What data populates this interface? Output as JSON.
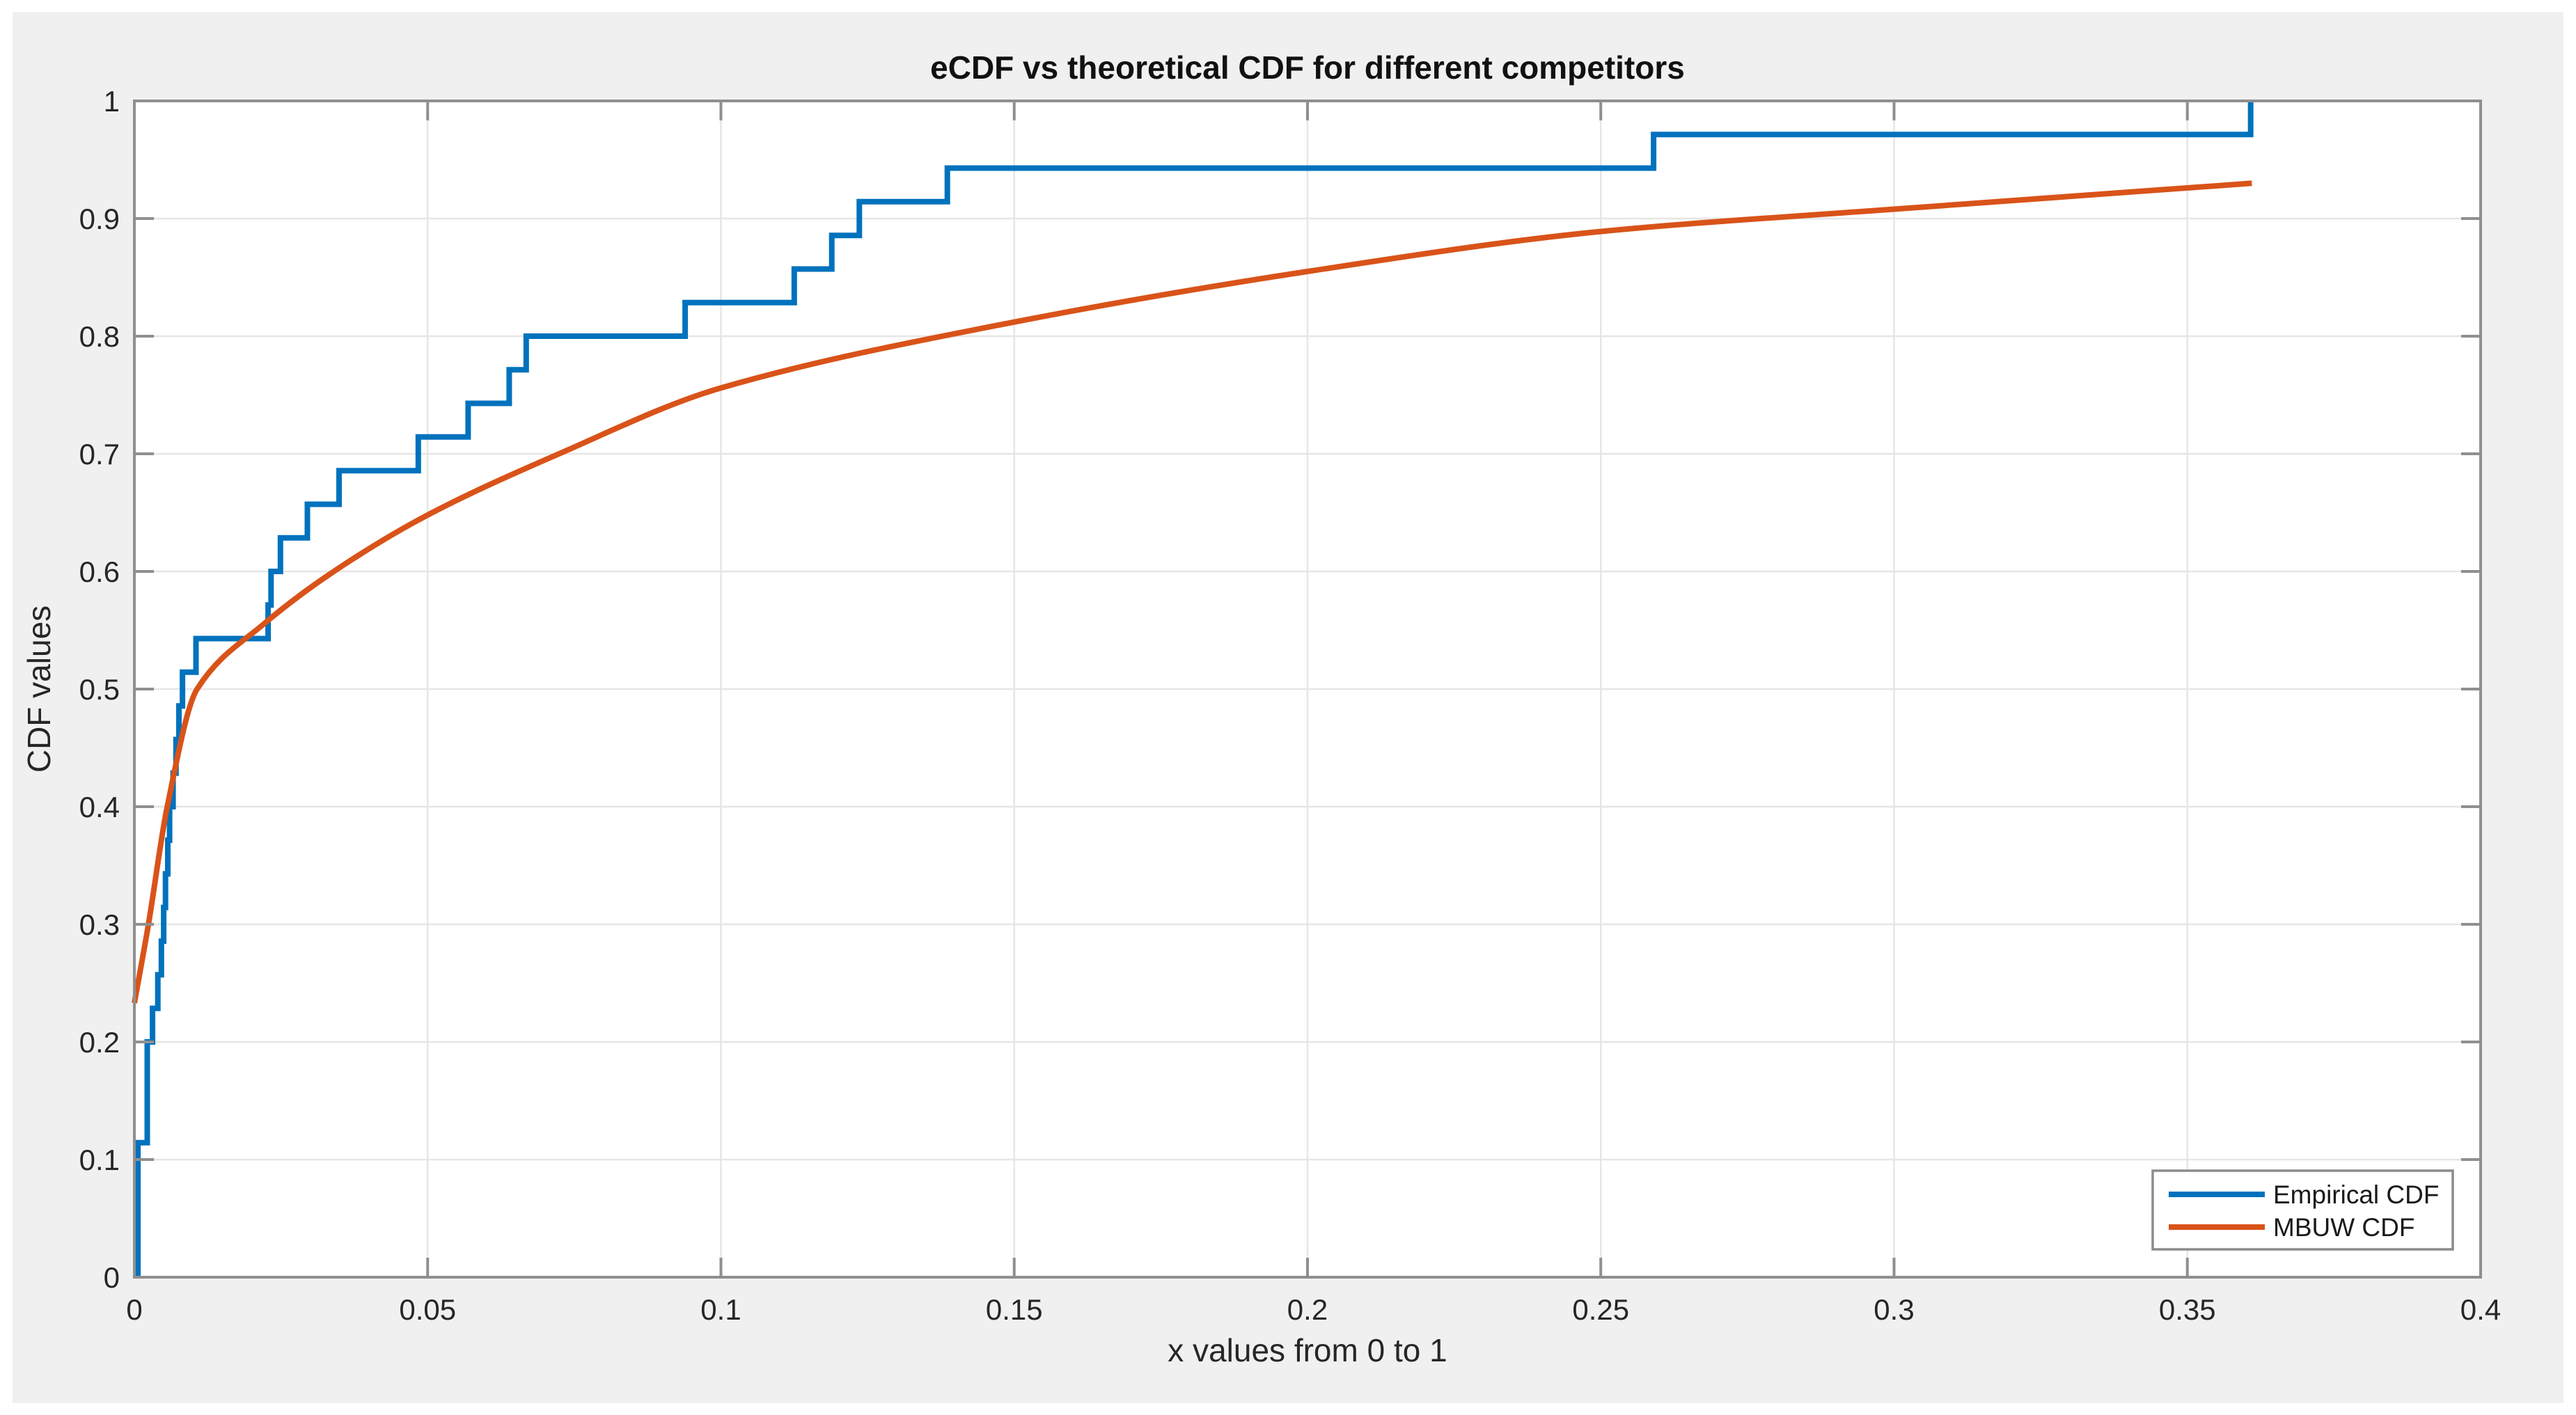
{
  "figure": {
    "background": "#f0f0f0",
    "plot_background": "#ffffff",
    "grid_color": "#e6e6e6",
    "axis_color": "#8f8f8f",
    "text_color": "#262626",
    "legend_border_color": "#8c8c8c",
    "legend_background": "#ffffff"
  },
  "chart_data": {
    "type": "line",
    "title": "eCDF vs theoretical CDF for different competitors",
    "xlabel": "x values from 0 to 1",
    "ylabel": "CDF values",
    "xlim": [
      0,
      0.4
    ],
    "ylim": [
      0,
      1
    ],
    "grid": true,
    "legend_position": "bottom-right",
    "x_ticks": [
      {
        "v": 0,
        "t": "0"
      },
      {
        "v": 0.05,
        "t": "0.05"
      },
      {
        "v": 0.1,
        "t": "0.1"
      },
      {
        "v": 0.15,
        "t": "0.15"
      },
      {
        "v": 0.2,
        "t": "0.2"
      },
      {
        "v": 0.25,
        "t": "0.25"
      },
      {
        "v": 0.3,
        "t": "0.3"
      },
      {
        "v": 0.35,
        "t": "0.35"
      },
      {
        "v": 0.4,
        "t": "0.4"
      }
    ],
    "y_ticks": [
      {
        "v": 0,
        "t": "0"
      },
      {
        "v": 0.1,
        "t": "0.1"
      },
      {
        "v": 0.2,
        "t": "0.2"
      },
      {
        "v": 0.3,
        "t": "0.3"
      },
      {
        "v": 0.4,
        "t": "0.4"
      },
      {
        "v": 0.5,
        "t": "0.5"
      },
      {
        "v": 0.6,
        "t": "0.6"
      },
      {
        "v": 0.7,
        "t": "0.7"
      },
      {
        "v": 0.8,
        "t": "0.8"
      },
      {
        "v": 0.9,
        "t": "0.9"
      },
      {
        "v": 1,
        "t": "1"
      }
    ],
    "series": [
      {
        "name": "Empirical CDF",
        "color": "#0072bd",
        "style": "stairs",
        "line_width": 8,
        "points": [
          [
            0.0006,
            0.1143
          ],
          [
            0.0022,
            0.2
          ],
          [
            0.0031,
            0.2286
          ],
          [
            0.004,
            0.2571
          ],
          [
            0.0046,
            0.2857
          ],
          [
            0.005,
            0.3143
          ],
          [
            0.0053,
            0.3429
          ],
          [
            0.0057,
            0.3714
          ],
          [
            0.006,
            0.4
          ],
          [
            0.0066,
            0.4286
          ],
          [
            0.0071,
            0.4571
          ],
          [
            0.0076,
            0.4857
          ],
          [
            0.0082,
            0.5143
          ],
          [
            0.0105,
            0.5429
          ],
          [
            0.0228,
            0.5714
          ],
          [
            0.0233,
            0.6
          ],
          [
            0.0249,
            0.6286
          ],
          [
            0.0295,
            0.6571
          ],
          [
            0.0349,
            0.6857
          ],
          [
            0.0484,
            0.7143
          ],
          [
            0.0569,
            0.7429
          ],
          [
            0.0639,
            0.7714
          ],
          [
            0.0668,
            0.8
          ],
          [
            0.0939,
            0.8286
          ],
          [
            0.1125,
            0.8571
          ],
          [
            0.1189,
            0.8857
          ],
          [
            0.1236,
            0.9143
          ],
          [
            0.1386,
            0.9429
          ],
          [
            0.259,
            0.9714
          ],
          [
            0.3608,
            1.0
          ]
        ]
      },
      {
        "name": "MBUW CDF",
        "color": "#d95319",
        "style": "smooth",
        "line_width": 8,
        "points": [
          [
            0,
            0.233
          ],
          [
            0.0024,
            0.3
          ],
          [
            0.0056,
            0.4
          ],
          [
            0.0107,
            0.5
          ],
          [
            0.022,
            0.555
          ],
          [
            0.034,
            0.6
          ],
          [
            0.05,
            0.648
          ],
          [
            0.0724,
            0.7
          ],
          [
            0.1,
            0.756
          ],
          [
            0.15,
            0.812
          ],
          [
            0.2,
            0.855
          ],
          [
            0.25,
            0.889
          ],
          [
            0.3,
            0.908
          ],
          [
            0.361,
            0.93
          ]
        ]
      }
    ]
  }
}
